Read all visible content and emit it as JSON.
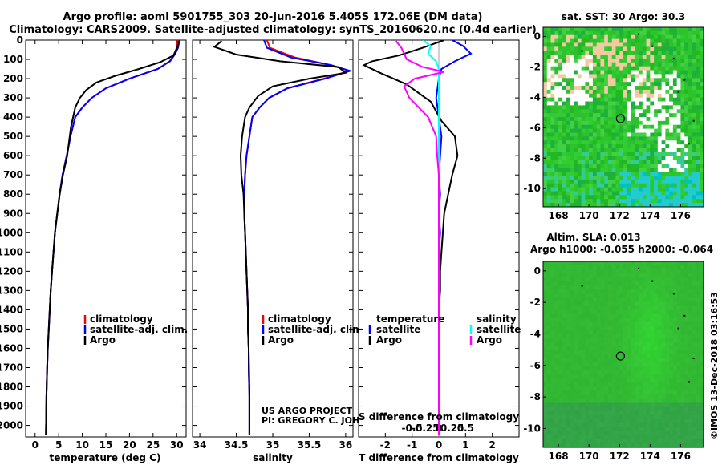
{
  "header": {
    "line1": "Argo profile: aoml 5901755_303 20-Jun-2016 5.405S 172.06E (DM data)",
    "line2": "Climatology: CARS2009. Satellite-adjusted climatology: synTS_20160620.nc (0.4d earlier)"
  },
  "credits": {
    "project": "US ARGO PROJECT",
    "pi": "PI: GREGORY C. JOHNSON",
    "side_stamp": "©IMOS 13-Dec-2018 03:16:53"
  },
  "colors": {
    "climatology": "#ff0000",
    "satellite": "#0000ff",
    "argo": "#000000",
    "s_satellite": "#00ffff",
    "s_argo": "#ff00ff"
  },
  "chart_data": [
    {
      "type": "line",
      "name": "temperature-profile",
      "xlabel": "temperature (deg C)",
      "ylabel": "",
      "xlim": [
        -2,
        32
      ],
      "ylim": [
        2060,
        0
      ],
      "xticks": [
        0,
        5,
        10,
        15,
        20,
        25,
        30
      ],
      "yticks": [
        0,
        100,
        200,
        300,
        400,
        500,
        600,
        700,
        800,
        900,
        1000,
        1100,
        1200,
        1300,
        1400,
        1500,
        1600,
        1700,
        1800,
        1900,
        2000
      ],
      "legend": [
        "climatology",
        "satellite-adj. clim.",
        "Argo"
      ],
      "series": [
        {
          "name": "climatology",
          "color": "#ff0000",
          "x": [
            30.2,
            30.0,
            29.5,
            28.5,
            26.0,
            20.0,
            15.0,
            12.0,
            10.0,
            8.5,
            7.5,
            6.7,
            5.8,
            5.2,
            4.7,
            4.2,
            3.9,
            3.6,
            3.3,
            3.1,
            2.9,
            2.7,
            2.55,
            2.4,
            2.3
          ],
          "y": [
            0,
            40,
            75,
            110,
            150,
            200,
            250,
            300,
            350,
            400,
            500,
            600,
            700,
            800,
            900,
            1000,
            1100,
            1200,
            1300,
            1400,
            1500,
            1600,
            1700,
            1850,
            2050
          ]
        },
        {
          "name": "satellite-adj. clim.",
          "color": "#0000ff",
          "x": [
            30.6,
            30.3,
            29.6,
            28.6,
            26.0,
            20.0,
            15.0,
            12.0,
            10.0,
            8.5,
            7.5,
            6.7,
            5.8,
            5.2,
            4.7,
            4.2,
            3.9,
            3.6,
            3.3,
            3.1,
            2.9,
            2.7,
            2.55,
            2.4,
            2.3
          ],
          "y": [
            0,
            40,
            75,
            110,
            150,
            200,
            250,
            300,
            350,
            400,
            500,
            600,
            700,
            800,
            900,
            1000,
            1100,
            1200,
            1300,
            1400,
            1500,
            1600,
            1700,
            1850,
            2050
          ]
        },
        {
          "name": "Argo",
          "color": "#000000",
          "x": [
            30.5,
            30.1,
            29.3,
            26.5,
            22.0,
            17.0,
            13.0,
            10.8,
            9.5,
            8.5,
            7.6,
            6.8,
            5.9,
            5.2,
            4.7,
            4.2,
            3.9,
            3.6,
            3.3,
            3.1,
            2.9,
            2.7,
            2.55,
            2.4,
            2.3
          ],
          "y": [
            5,
            40,
            80,
            115,
            150,
            185,
            220,
            260,
            300,
            350,
            450,
            600,
            700,
            800,
            900,
            1000,
            1100,
            1200,
            1300,
            1400,
            1500,
            1600,
            1700,
            1850,
            2050
          ]
        }
      ]
    },
    {
      "type": "line",
      "name": "salinity-profile",
      "xlabel": "salinity",
      "xlim": [
        33.9,
        36.1
      ],
      "ylim": [
        2060,
        0
      ],
      "xticks": [
        34,
        34.5,
        35,
        35.5,
        36
      ],
      "xticklabels": [
        "34",
        "34.5",
        "35",
        "35.5",
        "36"
      ],
      "legend": [
        "climatology",
        "satellite-adj. clim.",
        "Argo"
      ],
      "series": [
        {
          "name": "climatology",
          "color": "#ff0000",
          "x": [
            34.92,
            34.96,
            35.3,
            35.8,
            36.05,
            35.7,
            35.2,
            34.95,
            34.82,
            34.72,
            34.68,
            34.64,
            34.62,
            34.61,
            34.61,
            34.62,
            34.63,
            34.64,
            34.65,
            34.66,
            34.66,
            34.67,
            34.67,
            34.68,
            34.68
          ],
          "y": [
            0,
            40,
            90,
            130,
            160,
            200,
            250,
            300,
            350,
            400,
            500,
            600,
            700,
            800,
            900,
            1000,
            1100,
            1200,
            1300,
            1400,
            1500,
            1600,
            1700,
            1850,
            2050
          ]
        },
        {
          "name": "satellite-adj. clim.",
          "color": "#0000ff",
          "x": [
            34.88,
            34.92,
            35.25,
            35.8,
            36.06,
            35.72,
            35.2,
            34.95,
            34.82,
            34.72,
            34.68,
            34.64,
            34.62,
            34.61,
            34.61,
            34.62,
            34.63,
            34.64,
            34.65,
            34.66,
            34.66,
            34.67,
            34.67,
            34.68,
            34.68
          ],
          "y": [
            0,
            40,
            90,
            130,
            160,
            200,
            250,
            300,
            350,
            400,
            500,
            600,
            700,
            800,
            900,
            1000,
            1100,
            1200,
            1300,
            1400,
            1500,
            1600,
            1700,
            1850,
            2050
          ]
        },
        {
          "name": "Argo",
          "color": "#000000",
          "x": [
            34.3,
            34.2,
            34.5,
            35.1,
            35.9,
            36.0,
            35.5,
            35.0,
            34.8,
            34.68,
            34.62,
            34.58,
            34.56,
            34.57,
            34.6,
            34.61,
            34.62,
            34.63,
            34.64,
            34.65,
            34.66,
            34.66,
            34.67,
            34.68,
            34.68
          ],
          "y": [
            5,
            35,
            75,
            110,
            140,
            170,
            200,
            240,
            290,
            350,
            400,
            500,
            600,
            700,
            800,
            900,
            1000,
            1100,
            1200,
            1300,
            1400,
            1500,
            1600,
            1800,
            2050
          ]
        }
      ]
    },
    {
      "type": "line",
      "name": "difference-profile",
      "xlabel": "T difference from climatology",
      "x2label": "S difference from climatology",
      "xlim": [
        -3,
        3
      ],
      "ylim": [
        2060,
        0
      ],
      "xticks": [
        -2,
        -1,
        0,
        1,
        2
      ],
      "x2ticks": [
        -0.5,
        -0.25,
        0,
        0.25,
        0.5
      ],
      "x2ticklabels": [
        "-0.5",
        "-0.25",
        "0",
        "0.25",
        "0.5"
      ],
      "legend_temperature": [
        "temperature",
        "satellite",
        "Argo"
      ],
      "legend_salinity": [
        "salinity",
        "satellite",
        "Argo"
      ],
      "series": [
        {
          "name": "T satellite diff",
          "color": "#0000ff",
          "x": [
            0.5,
            0.9,
            1.2,
            0.6,
            0.1,
            0.0,
            -0.1,
            0.0,
            0.1,
            0.05,
            0.0,
            0.05,
            0.0,
            0.05,
            0.0,
            0.0,
            0.0,
            0.0,
            0.0,
            0.0,
            0.0,
            0.0
          ],
          "y": [
            0,
            30,
            70,
            110,
            150,
            200,
            300,
            400,
            500,
            600,
            700,
            800,
            900,
            1000,
            1100,
            1200,
            1300,
            1400,
            1500,
            1600,
            1800,
            2050
          ]
        },
        {
          "name": "T Argo diff",
          "color": "#000000",
          "x": [
            0.2,
            -0.6,
            -1.5,
            -2.5,
            -2.8,
            -2.2,
            -1.2,
            -0.3,
            0.1,
            0.6,
            0.7,
            0.5,
            0.35,
            0.2,
            0.15,
            0.1,
            0.05,
            0.05,
            0.0,
            0.0,
            0.0,
            0.0
          ],
          "y": [
            0,
            40,
            80,
            110,
            130,
            170,
            230,
            320,
            420,
            500,
            600,
            700,
            800,
            900,
            1000,
            1100,
            1200,
            1300,
            1400,
            1500,
            1800,
            2050
          ]
        },
        {
          "name": "S satellite diff",
          "color": "#00ffff",
          "x": [
            -0.3,
            -0.15,
            -0.2,
            -0.05,
            0.0,
            0.0,
            0.0,
            0.0,
            0.0,
            0.0,
            0.0,
            0.0,
            0.0,
            0.0,
            0.0,
            0.0,
            0.0,
            0.0
          ],
          "y": [
            0,
            30,
            70,
            110,
            150,
            200,
            300,
            400,
            500,
            600,
            700,
            800,
            1000,
            1200,
            1400,
            1600,
            1800,
            2050
          ]
        },
        {
          "name": "S Argo diff",
          "color": "#ff00ff",
          "x": [
            -0.8,
            -0.7,
            -0.6,
            -0.3,
            0.1,
            -0.45,
            -0.65,
            -0.55,
            -0.2,
            -0.05,
            -0.03,
            0.0,
            0.0,
            0.0,
            0.0,
            0.0
          ],
          "y": [
            5,
            40,
            100,
            140,
            165,
            200,
            240,
            300,
            400,
            500,
            600,
            700,
            800,
            1000,
            1500,
            2050
          ]
        }
      ]
    },
    {
      "type": "heatmap",
      "name": "sst-map",
      "title": "sat. SST: 30 Argo: 30.3",
      "xlim": [
        167,
        177.5
      ],
      "ylim": [
        -11.2,
        0.6
      ],
      "xticks": [
        168,
        170,
        172,
        174,
        176
      ],
      "yticks": [
        0,
        -2,
        -4,
        -6,
        -8,
        -10
      ],
      "marker": {
        "x": 172.06,
        "y": -5.405
      }
    },
    {
      "type": "heatmap",
      "name": "sla-map",
      "title": "Altim. SLA: 0.013",
      "subtitle": "Argo h1000: -0.055 h2000: -0.064",
      "xlim": [
        167,
        177.5
      ],
      "ylim": [
        -11.2,
        0.6
      ],
      "xticks": [
        168,
        170,
        172,
        174,
        176
      ],
      "yticks": [
        0,
        -2,
        -4,
        -6,
        -8,
        -10
      ],
      "marker": {
        "x": 172.06,
        "y": -5.405
      }
    }
  ]
}
